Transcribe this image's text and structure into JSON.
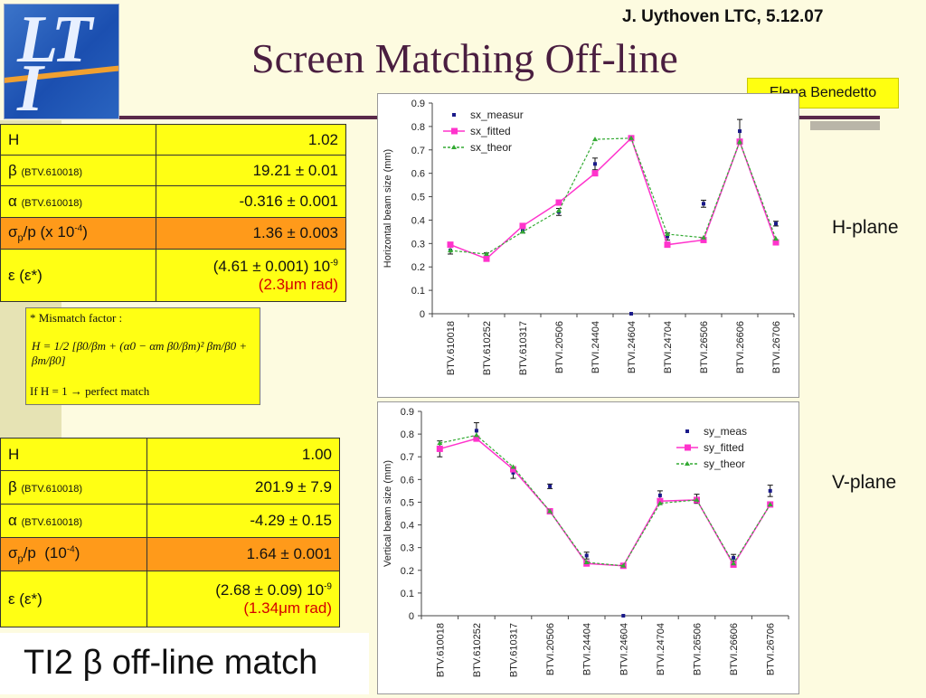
{
  "header": {
    "author": "J. Uythoven LTC, 5.12.07",
    "title": "Screen Matching Off-line",
    "credit": "Elena Benedetto",
    "logo_text": "LTI"
  },
  "table_h": {
    "rows": [
      {
        "label": "H",
        "sub": "",
        "value": "1.02",
        "extra": ""
      },
      {
        "label": "β",
        "sub": "(BTV.610018)",
        "value": "19.21 ± 0.01",
        "extra": ""
      },
      {
        "label": "α",
        "sub": "(BTV.610018)",
        "value": "-0.316 ± 0.001",
        "extra": ""
      },
      {
        "label": "σp/p (x 10-4)",
        "sub": "",
        "value": "1.36 ± 0.003",
        "extra": ""
      },
      {
        "label": "ε (ε*)",
        "sub": "",
        "value": "(4.61 ± 0.001) 10-9",
        "extra": "(2.3μm rad)"
      }
    ]
  },
  "table_v": {
    "rows": [
      {
        "label": "H",
        "sub": "",
        "value": "1.00",
        "extra": ""
      },
      {
        "label": "β",
        "sub": "(BTV.610018)",
        "value": "201.9 ± 7.9",
        "extra": ""
      },
      {
        "label": "α",
        "sub": "(BTV.610018)",
        "value": "-4.29 ± 0.15",
        "extra": ""
      },
      {
        "label": "σp/p  (10-4)",
        "sub": "",
        "value": "1.64 ± 0.001",
        "extra": ""
      },
      {
        "label": "ε (ε*)",
        "sub": "",
        "value": "(2.68 ± 0.09) 10-9",
        "extra": "(1.34μm rad)"
      }
    ]
  },
  "mismatch": {
    "heading": "* Mismatch factor :",
    "formula": "H = 1/2 [β0/βm + (α0 − αm β0/βm)² βm/β0 + βm/β0]",
    "footer": "If H = 1 → perfect match"
  },
  "planes": {
    "h": "H-plane",
    "v": "V-plane"
  },
  "bottom_title": "TI2 β off-line match",
  "colors": {
    "measured": "#1a1a8a",
    "fitted": "#ff33cc",
    "theory": "#33aa33",
    "yellow": "#ffff14",
    "orange": "#ff9a1a"
  },
  "chart_data": [
    {
      "type": "line",
      "ylabel": "Horizontal beam size (mm)",
      "ylim": [
        0,
        0.9
      ],
      "yticks": [
        "0",
        "0.1",
        "0.2",
        "0.3",
        "0.4",
        "0.5",
        "0.6",
        "0.7",
        "0.8",
        "0.9"
      ],
      "categories": [
        "BTV.610018",
        "BTV.610252",
        "BTV.610317",
        "BTVI.20506",
        "BTVI.24404",
        "BTVI.24604",
        "BTVI.24704",
        "BTVI.26506",
        "BTVI.26606",
        "BTVI.26706"
      ],
      "legend_position": "top-left",
      "series": [
        {
          "name": "sx_measur",
          "values": [
            0.27,
            0.25,
            0.355,
            0.435,
            0.64,
            0.0,
            0.33,
            0.47,
            0.78,
            0.385
          ],
          "errors": [
            0.015,
            0.01,
            0.01,
            0.015,
            0.025,
            0.0,
            0.015,
            0.015,
            0.05,
            0.01
          ]
        },
        {
          "name": "sx_fitted",
          "values": [
            0.295,
            0.235,
            0.375,
            0.475,
            0.6,
            0.75,
            0.295,
            0.315,
            0.735,
            0.305
          ]
        },
        {
          "name": "sx_theor",
          "values": [
            0.27,
            0.255,
            0.35,
            0.44,
            0.745,
            0.75,
            0.34,
            0.325,
            0.735,
            0.32
          ]
        }
      ]
    },
    {
      "type": "line",
      "ylabel": "Vertical beam size (mm)",
      "ylim": [
        0,
        0.9
      ],
      "yticks": [
        "0",
        "0.1",
        "0.2",
        "0.3",
        "0.4",
        "0.5",
        "0.6",
        "0.7",
        "0.8",
        "0.9"
      ],
      "categories": [
        "BTV.610018",
        "BTV.610252",
        "BTV.610317",
        "BTVI.20506",
        "BTVI.24404",
        "BTVI.24604",
        "BTVI.24704",
        "BTVI.26506",
        "BTVI.26606",
        "BTVI.26706"
      ],
      "legend_position": "top-right",
      "series": [
        {
          "name": "sy_meas",
          "values": [
            0.735,
            0.815,
            0.63,
            0.57,
            0.265,
            0.0,
            0.53,
            0.515,
            0.255,
            0.55
          ],
          "errors": [
            0.035,
            0.035,
            0.025,
            0.01,
            0.015,
            0.0,
            0.02,
            0.02,
            0.015,
            0.025
          ]
        },
        {
          "name": "sy_fitted",
          "values": [
            0.735,
            0.78,
            0.645,
            0.46,
            0.23,
            0.22,
            0.505,
            0.51,
            0.225,
            0.49
          ]
        },
        {
          "name": "sy_theor",
          "values": [
            0.76,
            0.795,
            0.655,
            0.46,
            0.235,
            0.22,
            0.495,
            0.51,
            0.23,
            0.49
          ]
        }
      ]
    }
  ]
}
